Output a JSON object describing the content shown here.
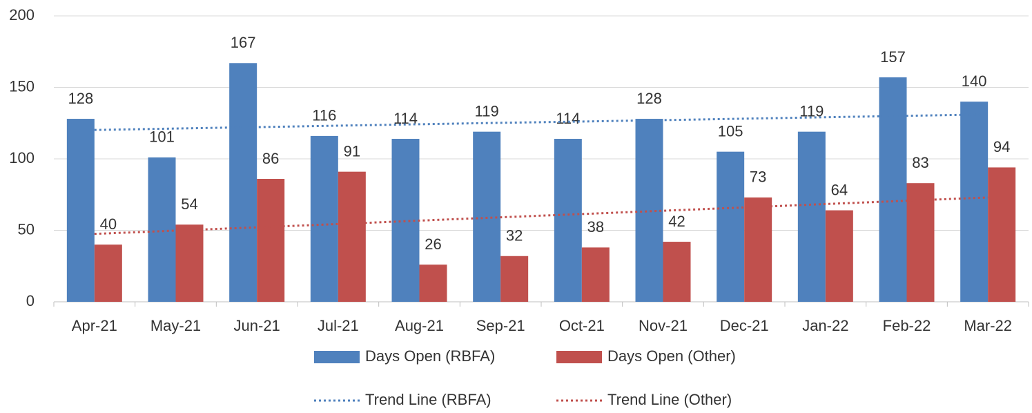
{
  "chart_data": {
    "type": "bar",
    "categories": [
      "Apr-21",
      "May-21",
      "Jun-21",
      "Jul-21",
      "Aug-21",
      "Sep-21",
      "Oct-21",
      "Nov-21",
      "Dec-21",
      "Jan-22",
      "Feb-22",
      "Mar-22"
    ],
    "series": [
      {
        "name": "Days Open (RBFA)",
        "mark": "bar",
        "color": "#4f81bd",
        "values": [
          128,
          101,
          167,
          116,
          114,
          119,
          114,
          128,
          105,
          119,
          157,
          140
        ]
      },
      {
        "name": "Days Open (Other)",
        "mark": "bar",
        "color": "#c0504d",
        "values": [
          40,
          54,
          86,
          91,
          26,
          32,
          38,
          42,
          73,
          64,
          83,
          94
        ]
      },
      {
        "name": "Trend Line (RBFA)",
        "mark": "line",
        "dash": "dotted",
        "color": "#4f81bd",
        "values": [
          120.2,
          121.2,
          122.2,
          123.2,
          124.2,
          125.2,
          126.1,
          127.1,
          128.1,
          129.1,
          130.1,
          131.1
        ]
      },
      {
        "name": "Trend Line (Other)",
        "mark": "line",
        "dash": "dotted",
        "color": "#c0504d",
        "values": [
          47.5,
          49.8,
          52.1,
          54.4,
          56.8,
          59.1,
          61.4,
          63.7,
          66.0,
          68.4,
          70.7,
          73.0
        ]
      }
    ],
    "ylim": [
      0,
      200
    ],
    "yticks": [
      0,
      50,
      100,
      150,
      200
    ],
    "grid": true,
    "legend": "bottom"
  }
}
